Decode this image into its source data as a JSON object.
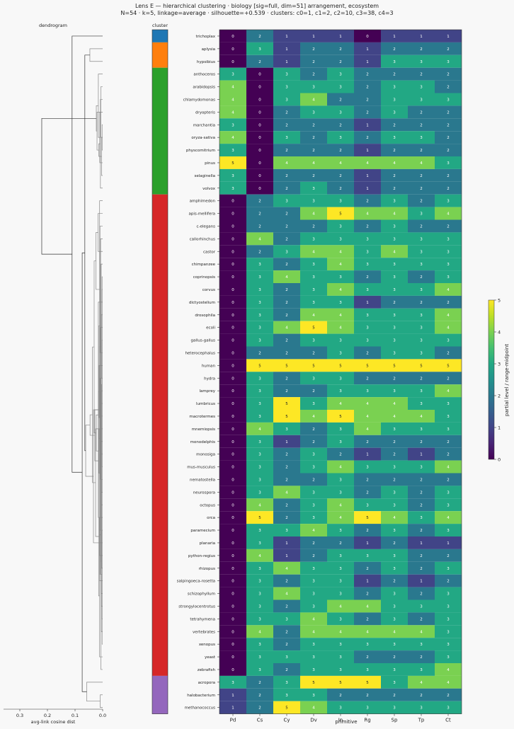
{
  "title_line1": "Lens E — hierarchical clustering · biology [sig=full, dim=51] arrangement, ecosystem",
  "title_line2": "N=54 · k=5, linkage=average · silhouette=+0.539 · clusters: c0=1, c1=2, c2=10, c3=38, c4=3",
  "dendrogram_label": "dendrogram",
  "cluster_label": "cluster",
  "dendro_xlabel": "avg-link cosine dist",
  "dendro_ticks": [
    "0.3",
    "0.2",
    "0.1",
    "0.0"
  ],
  "colorbar_label": "partial level / range-midpoint",
  "chart_data": {
    "type": "heatmap",
    "xlabel": "primitive",
    "columns": [
      "Pd",
      "Cs",
      "Cy",
      "Dv",
      "In",
      "Rg",
      "Sp",
      "Tp",
      "Ct"
    ],
    "rows": [
      {
        "name": "trichoplax",
        "cluster": 0,
        "values": [
          0,
          2,
          1,
          1,
          1,
          0,
          1,
          1,
          1
        ]
      },
      {
        "name": "aplysia",
        "cluster": 1,
        "values": [
          0,
          3,
          1,
          2,
          2,
          1,
          2,
          2,
          2
        ]
      },
      {
        "name": "hypsibius",
        "cluster": 1,
        "values": [
          0,
          2,
          1,
          2,
          2,
          1,
          3,
          3,
          3
        ]
      },
      {
        "name": "anthoceros",
        "cluster": 2,
        "values": [
          3,
          0,
          3,
          2,
          3,
          2,
          2,
          2,
          2
        ]
      },
      {
        "name": "arabidopsis",
        "cluster": 2,
        "values": [
          4,
          0,
          3,
          3,
          3,
          2,
          3,
          3,
          2
        ]
      },
      {
        "name": "chlamydomonas",
        "cluster": 2,
        "values": [
          4,
          0,
          3,
          4,
          2,
          2,
          3,
          3,
          3
        ]
      },
      {
        "name": "dryopteris",
        "cluster": 2,
        "values": [
          4,
          0,
          2,
          3,
          3,
          2,
          3,
          2,
          2
        ]
      },
      {
        "name": "marchantia",
        "cluster": 2,
        "values": [
          3,
          0,
          2,
          2,
          2,
          1,
          2,
          2,
          2
        ]
      },
      {
        "name": "oryza-sativa",
        "cluster": 2,
        "values": [
          4,
          0,
          3,
          2,
          3,
          2,
          3,
          3,
          2
        ]
      },
      {
        "name": "physcomitrium",
        "cluster": 2,
        "values": [
          3,
          0,
          2,
          2,
          2,
          1,
          2,
          2,
          2
        ]
      },
      {
        "name": "pinus",
        "cluster": 2,
        "values": [
          5,
          0,
          4,
          4,
          4,
          4,
          4,
          4,
          3
        ]
      },
      {
        "name": "selaginella",
        "cluster": 2,
        "values": [
          3,
          0,
          2,
          2,
          2,
          1,
          2,
          2,
          2
        ]
      },
      {
        "name": "volvox",
        "cluster": 2,
        "values": [
          3,
          0,
          2,
          3,
          2,
          1,
          2,
          2,
          2
        ]
      },
      {
        "name": "amphimedon",
        "cluster": 3,
        "values": [
          0,
          2,
          3,
          3,
          3,
          2,
          3,
          2,
          3
        ]
      },
      {
        "name": "apis-mellifera",
        "cluster": 3,
        "values": [
          0,
          2,
          2,
          4,
          5,
          4,
          4,
          3,
          4
        ]
      },
      {
        "name": "c-elegans",
        "cluster": 3,
        "values": [
          0,
          2,
          2,
          2,
          3,
          2,
          3,
          2,
          2
        ]
      },
      {
        "name": "callorhinchus",
        "cluster": 3,
        "values": [
          0,
          4,
          2,
          3,
          3,
          3,
          3,
          3,
          3
        ]
      },
      {
        "name": "castor",
        "cluster": 3,
        "values": [
          0,
          2,
          3,
          4,
          4,
          3,
          4,
          3,
          3
        ]
      },
      {
        "name": "chimpanzee",
        "cluster": 3,
        "values": [
          0,
          3,
          2,
          3,
          4,
          3,
          3,
          3,
          3
        ]
      },
      {
        "name": "coprinopsis",
        "cluster": 3,
        "values": [
          0,
          3,
          4,
          3,
          3,
          2,
          3,
          2,
          3
        ]
      },
      {
        "name": "corvus",
        "cluster": 3,
        "values": [
          0,
          3,
          2,
          3,
          4,
          3,
          3,
          3,
          4
        ]
      },
      {
        "name": "dictyostelium",
        "cluster": 3,
        "values": [
          0,
          3,
          2,
          3,
          3,
          1,
          2,
          2,
          2
        ]
      },
      {
        "name": "drosophila",
        "cluster": 3,
        "values": [
          0,
          3,
          2,
          4,
          4,
          3,
          3,
          3,
          4
        ]
      },
      {
        "name": "ecoli",
        "cluster": 3,
        "values": [
          0,
          3,
          4,
          5,
          4,
          3,
          3,
          3,
          4
        ]
      },
      {
        "name": "gallus-gallus",
        "cluster": 3,
        "values": [
          0,
          3,
          2,
          3,
          3,
          3,
          3,
          3,
          3
        ]
      },
      {
        "name": "heterocephalus",
        "cluster": 3,
        "values": [
          0,
          2,
          2,
          2,
          3,
          2,
          3,
          3,
          2
        ]
      },
      {
        "name": "human",
        "cluster": 3,
        "values": [
          0,
          5,
          5,
          5,
          5,
          5,
          5,
          5,
          5
        ]
      },
      {
        "name": "hydra",
        "cluster": 3,
        "values": [
          0,
          3,
          2,
          3,
          3,
          2,
          2,
          2,
          2
        ]
      },
      {
        "name": "lamprey",
        "cluster": 3,
        "values": [
          0,
          3,
          2,
          2,
          3,
          3,
          3,
          3,
          4
        ]
      },
      {
        "name": "lumbricus",
        "cluster": 3,
        "values": [
          0,
          3,
          5,
          3,
          4,
          4,
          4,
          3,
          3
        ]
      },
      {
        "name": "macrotermes",
        "cluster": 3,
        "values": [
          0,
          3,
          5,
          4,
          5,
          4,
          4,
          4,
          3
        ]
      },
      {
        "name": "mnemiopsis",
        "cluster": 3,
        "values": [
          0,
          4,
          3,
          2,
          3,
          4,
          3,
          3,
          3
        ]
      },
      {
        "name": "monodelphis",
        "cluster": 3,
        "values": [
          0,
          3,
          1,
          2,
          3,
          2,
          2,
          2,
          2
        ]
      },
      {
        "name": "monosiga",
        "cluster": 3,
        "values": [
          0,
          3,
          2,
          3,
          2,
          1,
          2,
          1,
          2
        ]
      },
      {
        "name": "mus-musculus",
        "cluster": 3,
        "values": [
          0,
          3,
          2,
          3,
          4,
          3,
          3,
          3,
          4
        ]
      },
      {
        "name": "nematostella",
        "cluster": 3,
        "values": [
          0,
          3,
          2,
          2,
          3,
          2,
          2,
          2,
          2
        ]
      },
      {
        "name": "neurospora",
        "cluster": 3,
        "values": [
          0,
          3,
          4,
          3,
          3,
          2,
          3,
          2,
          3
        ]
      },
      {
        "name": "octopus",
        "cluster": 3,
        "values": [
          0,
          4,
          2,
          3,
          4,
          3,
          3,
          2,
          3
        ]
      },
      {
        "name": "orca",
        "cluster": 3,
        "values": [
          0,
          5,
          2,
          3,
          4,
          5,
          4,
          3,
          4
        ]
      },
      {
        "name": "paramecium",
        "cluster": 3,
        "values": [
          0,
          3,
          3,
          4,
          3,
          2,
          3,
          2,
          3
        ]
      },
      {
        "name": "planaria",
        "cluster": 3,
        "values": [
          0,
          3,
          1,
          2,
          2,
          1,
          2,
          1,
          1
        ]
      },
      {
        "name": "python-regius",
        "cluster": 3,
        "values": [
          0,
          4,
          1,
          2,
          3,
          3,
          3,
          2,
          2
        ]
      },
      {
        "name": "rhizopus",
        "cluster": 3,
        "values": [
          0,
          3,
          4,
          3,
          3,
          2,
          3,
          2,
          3
        ]
      },
      {
        "name": "salpingoeca-rosetta",
        "cluster": 3,
        "values": [
          0,
          3,
          2,
          3,
          3,
          1,
          2,
          1,
          2
        ]
      },
      {
        "name": "schizophyllum",
        "cluster": 3,
        "values": [
          0,
          3,
          4,
          3,
          3,
          2,
          3,
          2,
          3
        ]
      },
      {
        "name": "strongylocentrotus",
        "cluster": 3,
        "values": [
          0,
          3,
          2,
          3,
          4,
          4,
          3,
          3,
          3
        ]
      },
      {
        "name": "tetrahymena",
        "cluster": 3,
        "values": [
          0,
          3,
          3,
          4,
          3,
          2,
          3,
          2,
          3
        ]
      },
      {
        "name": "vertebrates",
        "cluster": 3,
        "values": [
          0,
          4,
          2,
          4,
          4,
          4,
          4,
          4,
          3
        ]
      },
      {
        "name": "xenopus",
        "cluster": 3,
        "values": [
          0,
          3,
          2,
          3,
          3,
          3,
          3,
          3,
          3
        ]
      },
      {
        "name": "yeast",
        "cluster": 3,
        "values": [
          0,
          3,
          3,
          3,
          3,
          2,
          2,
          2,
          3
        ]
      },
      {
        "name": "zebrafish",
        "cluster": 3,
        "values": [
          0,
          3,
          2,
          3,
          3,
          3,
          3,
          3,
          4
        ]
      },
      {
        "name": "acropora",
        "cluster": 4,
        "values": [
          3,
          2,
          3,
          5,
          5,
          5,
          3,
          4,
          4
        ]
      },
      {
        "name": "halobacterium",
        "cluster": 4,
        "values": [
          1,
          2,
          3,
          3,
          2,
          2,
          2,
          2,
          2
        ]
      },
      {
        "name": "methanococcus",
        "cluster": 4,
        "values": [
          1,
          2,
          5,
          4,
          3,
          3,
          3,
          3,
          3
        ]
      }
    ],
    "cluster_colors": [
      "#1f77b4",
      "#ff7f0e",
      "#2ca02c",
      "#d62728",
      "#9467bd"
    ],
    "colorbar_range": [
      0,
      5
    ],
    "colorbar_ticks": [
      "0",
      "1",
      "2",
      "3",
      "4",
      "5"
    ],
    "dendrogram_axis_range": [
      0.35,
      0.0
    ]
  }
}
